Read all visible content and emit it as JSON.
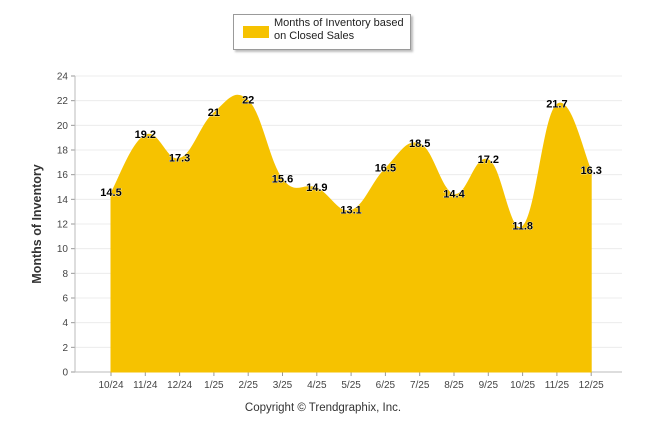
{
  "chart_data": {
    "type": "area",
    "title": "",
    "xlabel": "",
    "ylabel": "Months of Inventory",
    "ylim": [
      0,
      24
    ],
    "yticks": [
      0,
      2,
      4,
      6,
      8,
      10,
      12,
      14,
      16,
      18,
      20,
      22,
      24
    ],
    "grid": true,
    "legend_position": "top-center",
    "categories": [
      "10/24",
      "11/24",
      "12/24",
      "1/25",
      "2/25",
      "3/25",
      "4/25",
      "5/25",
      "6/25",
      "7/25",
      "8/25",
      "9/25",
      "10/25",
      "11/25",
      "12/25"
    ],
    "series": [
      {
        "name": "Months of Inventory based on Closed Sales",
        "color": "#f6c200",
        "values": [
          14.5,
          19.2,
          17.3,
          21,
          22,
          15.6,
          14.9,
          13.1,
          16.5,
          18.5,
          14.4,
          17.2,
          11.8,
          21.7,
          16.3
        ],
        "labels": [
          "14.5",
          "19.2",
          "17.3",
          "21",
          "22",
          "15.6",
          "14.9",
          "13.1",
          "16.5",
          "18.5",
          "14.4",
          "17.2",
          "11.8",
          "21.7",
          "16.3"
        ]
      }
    ]
  },
  "legend": {
    "label": "Months of Inventory based on Closed Sales"
  },
  "footer": {
    "copyright": "Copyright © Trendgraphix, Inc."
  }
}
